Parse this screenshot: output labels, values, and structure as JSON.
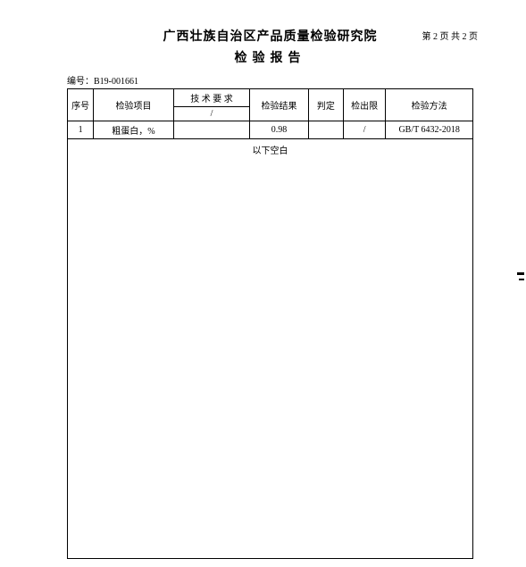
{
  "header": {
    "title": "广西壮族自治区产品质量检验研究院",
    "page_label": "第 2 页 共 2 页",
    "subtitle": "检验报告",
    "report_no_label": "编号：",
    "report_no": "B19-001661"
  },
  "table": {
    "columns": {
      "seq": "序号",
      "item": "检验项目",
      "tech_req": "技 术 要 求",
      "tech_sub": "/",
      "result": "检验结果",
      "judge": "判定",
      "basis": "检出限",
      "method": "检验方法"
    },
    "rows": [
      {
        "seq": "1",
        "item": "粗蛋白，%",
        "tech": "",
        "result": "0.98",
        "judge": "",
        "basis": "/",
        "method": "GB/T 6432-2018"
      }
    ]
  },
  "body": {
    "note": "以下空白"
  },
  "style": {
    "text_color": "#000000",
    "bg_color": "#ffffff",
    "font_family": "SimSun"
  }
}
